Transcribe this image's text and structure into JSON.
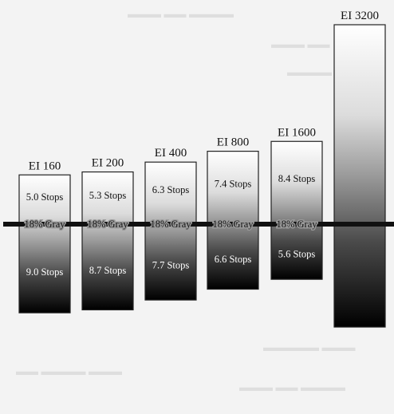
{
  "chart_data": {
    "type": "bar",
    "title": "",
    "xlabel": "",
    "ylabel": "",
    "midline_label": "18% Gray",
    "unit": "Stops",
    "categories": [
      "EI 160",
      "EI 200",
      "EI 400",
      "EI 800",
      "EI 1600",
      "EI 3200"
    ],
    "series": [
      {
        "name": "",
        "values": [
          5.0,
          5.3,
          6.3,
          7.4,
          8.4,
          null
        ]
      },
      {
        "name": "",
        "values": [
          9.0,
          8.7,
          7.7,
          6.6,
          5.6,
          null
        ]
      }
    ],
    "labels_over": [
      "5.0 Stops",
      "5.3 Stops",
      "6.3 Stops",
      "7.4 Stops",
      "8.4 Stops",
      ""
    ],
    "labels_under": [
      "9.0 Stops",
      "8.7 Stops",
      "7.7 Stops",
      "6.6 Stops",
      "5.6 Stops",
      ""
    ],
    "show_midline_label": [
      true,
      true,
      true,
      true,
      true,
      false
    ],
    "colors": {
      "top": "#ffffff",
      "bottom": "#000000",
      "midline": "#111111",
      "border": "#222222",
      "background": "#f3f3f3"
    }
  }
}
